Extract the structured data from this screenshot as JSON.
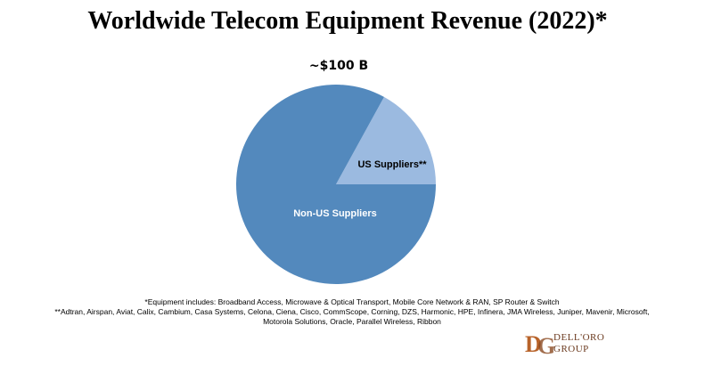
{
  "title": "Worldwide Telecom Equipment Revenue (2022)*",
  "chart_data": {
    "type": "pie",
    "title": "Worldwide Telecom Equipment Revenue (2022)*",
    "total_label": "~$100 B",
    "slices": [
      {
        "name": "US Suppliers**",
        "value": 17,
        "color": "#9bbae0"
      },
      {
        "name": "Non-US Suppliers",
        "value": 83,
        "color": "#5389bd"
      }
    ]
  },
  "footnotes": {
    "line1": "*Equipment includes: Broadband Access, Microwave & Optical Transport, Mobile Core Network & RAN, SP Router & Switch",
    "line2": "**Adtran, Airspan, Aviat, Calix, Cambium, Casa Systems, Celona, Ciena, Cisco, CommScope, Corning, DZS, Harmonic, HPE, Infinera, JMA Wireless, Juniper, Mavenir, Microsoft,",
    "line3": "Motorola Solutions, Oracle, Parallel Wireless, Ribbon"
  },
  "logo": {
    "line1": "DELL'ORO",
    "line2": "GROUP",
    "color": "#8b4a22"
  }
}
